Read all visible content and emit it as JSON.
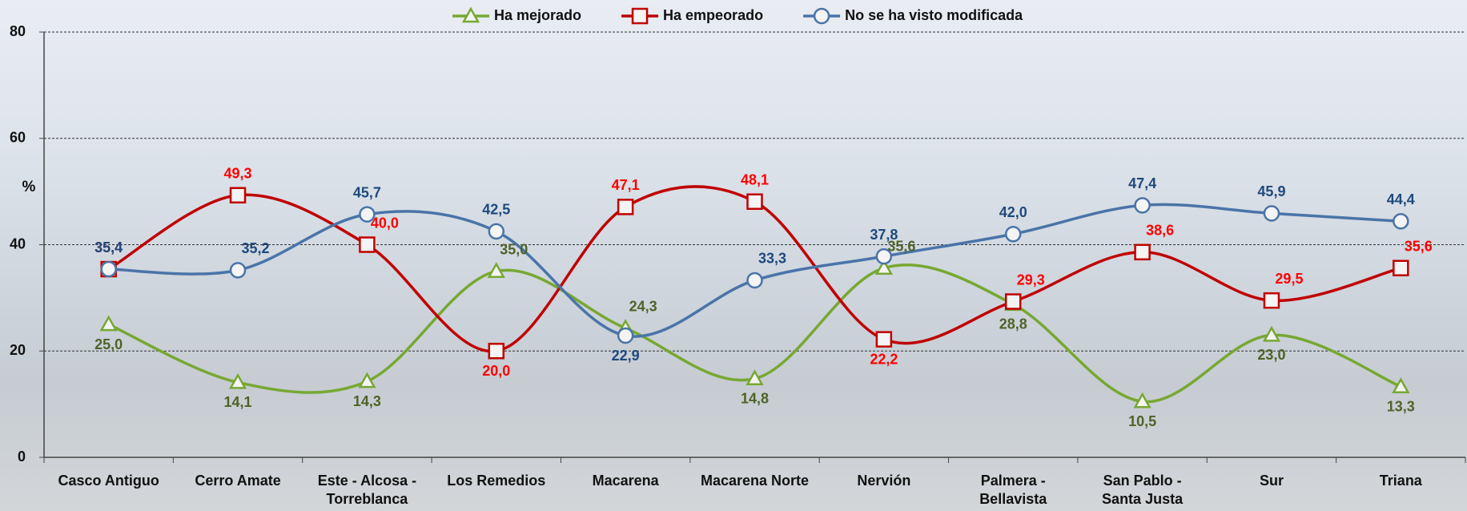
{
  "chart_data": {
    "type": "line",
    "ylabel": "%",
    "categories": [
      "Casco Antiguo",
      "Cerro Amate",
      "Este - Alcosa -\nTorreblanca",
      "Los Remedios",
      "Macarena",
      "Macarena Norte",
      "Nervión",
      "Palmera -\nBellavista",
      "San Pablo -\nSanta Justa",
      "Sur",
      "Triana"
    ],
    "series": [
      {
        "name": "Ha mejorado",
        "color": "#77a832",
        "label_color": "#4f6228",
        "marker": "triangle",
        "values": [
          25.0,
          14.1,
          14.3,
          35.0,
          24.3,
          14.8,
          35.6,
          28.8,
          10.5,
          23.0,
          13.3
        ],
        "value_labels": [
          "25,0",
          "14,1",
          "14,3",
          "35,0",
          "24,3",
          "14,8",
          "35,6",
          "28,8",
          "10,5",
          "23,0",
          "13,3"
        ]
      },
      {
        "name": "Ha empeorado",
        "color": "#c00000",
        "label_color": "#ff0000",
        "marker": "square",
        "values": [
          35.4,
          49.3,
          40.0,
          20.0,
          47.1,
          48.1,
          22.2,
          29.3,
          38.6,
          29.5,
          35.6
        ],
        "value_labels": [
          "35,4",
          "49,3",
          "40,0",
          "20,0",
          "47,1",
          "48,1",
          "22,2",
          "29,3",
          "38,6",
          "29,5",
          "35,6"
        ]
      },
      {
        "name": "No se ha visto modificada",
        "color": "#4a74a8",
        "label_color": "#1f497d",
        "marker": "circle",
        "values": [
          35.4,
          35.2,
          45.7,
          42.5,
          22.9,
          33.3,
          37.8,
          42.0,
          47.4,
          45.9,
          44.4
        ],
        "value_labels": [
          "35,4",
          "35,2",
          "45,7",
          "42,5",
          "22,9",
          "33,3",
          "37,8",
          "42,0",
          "47,4",
          "45,9",
          "44,4"
        ]
      }
    ],
    "ylim": [
      0,
      80
    ],
    "yticks": [
      0,
      20,
      40,
      60,
      80
    ],
    "grid": true,
    "legend": "top",
    "smooth": true
  }
}
